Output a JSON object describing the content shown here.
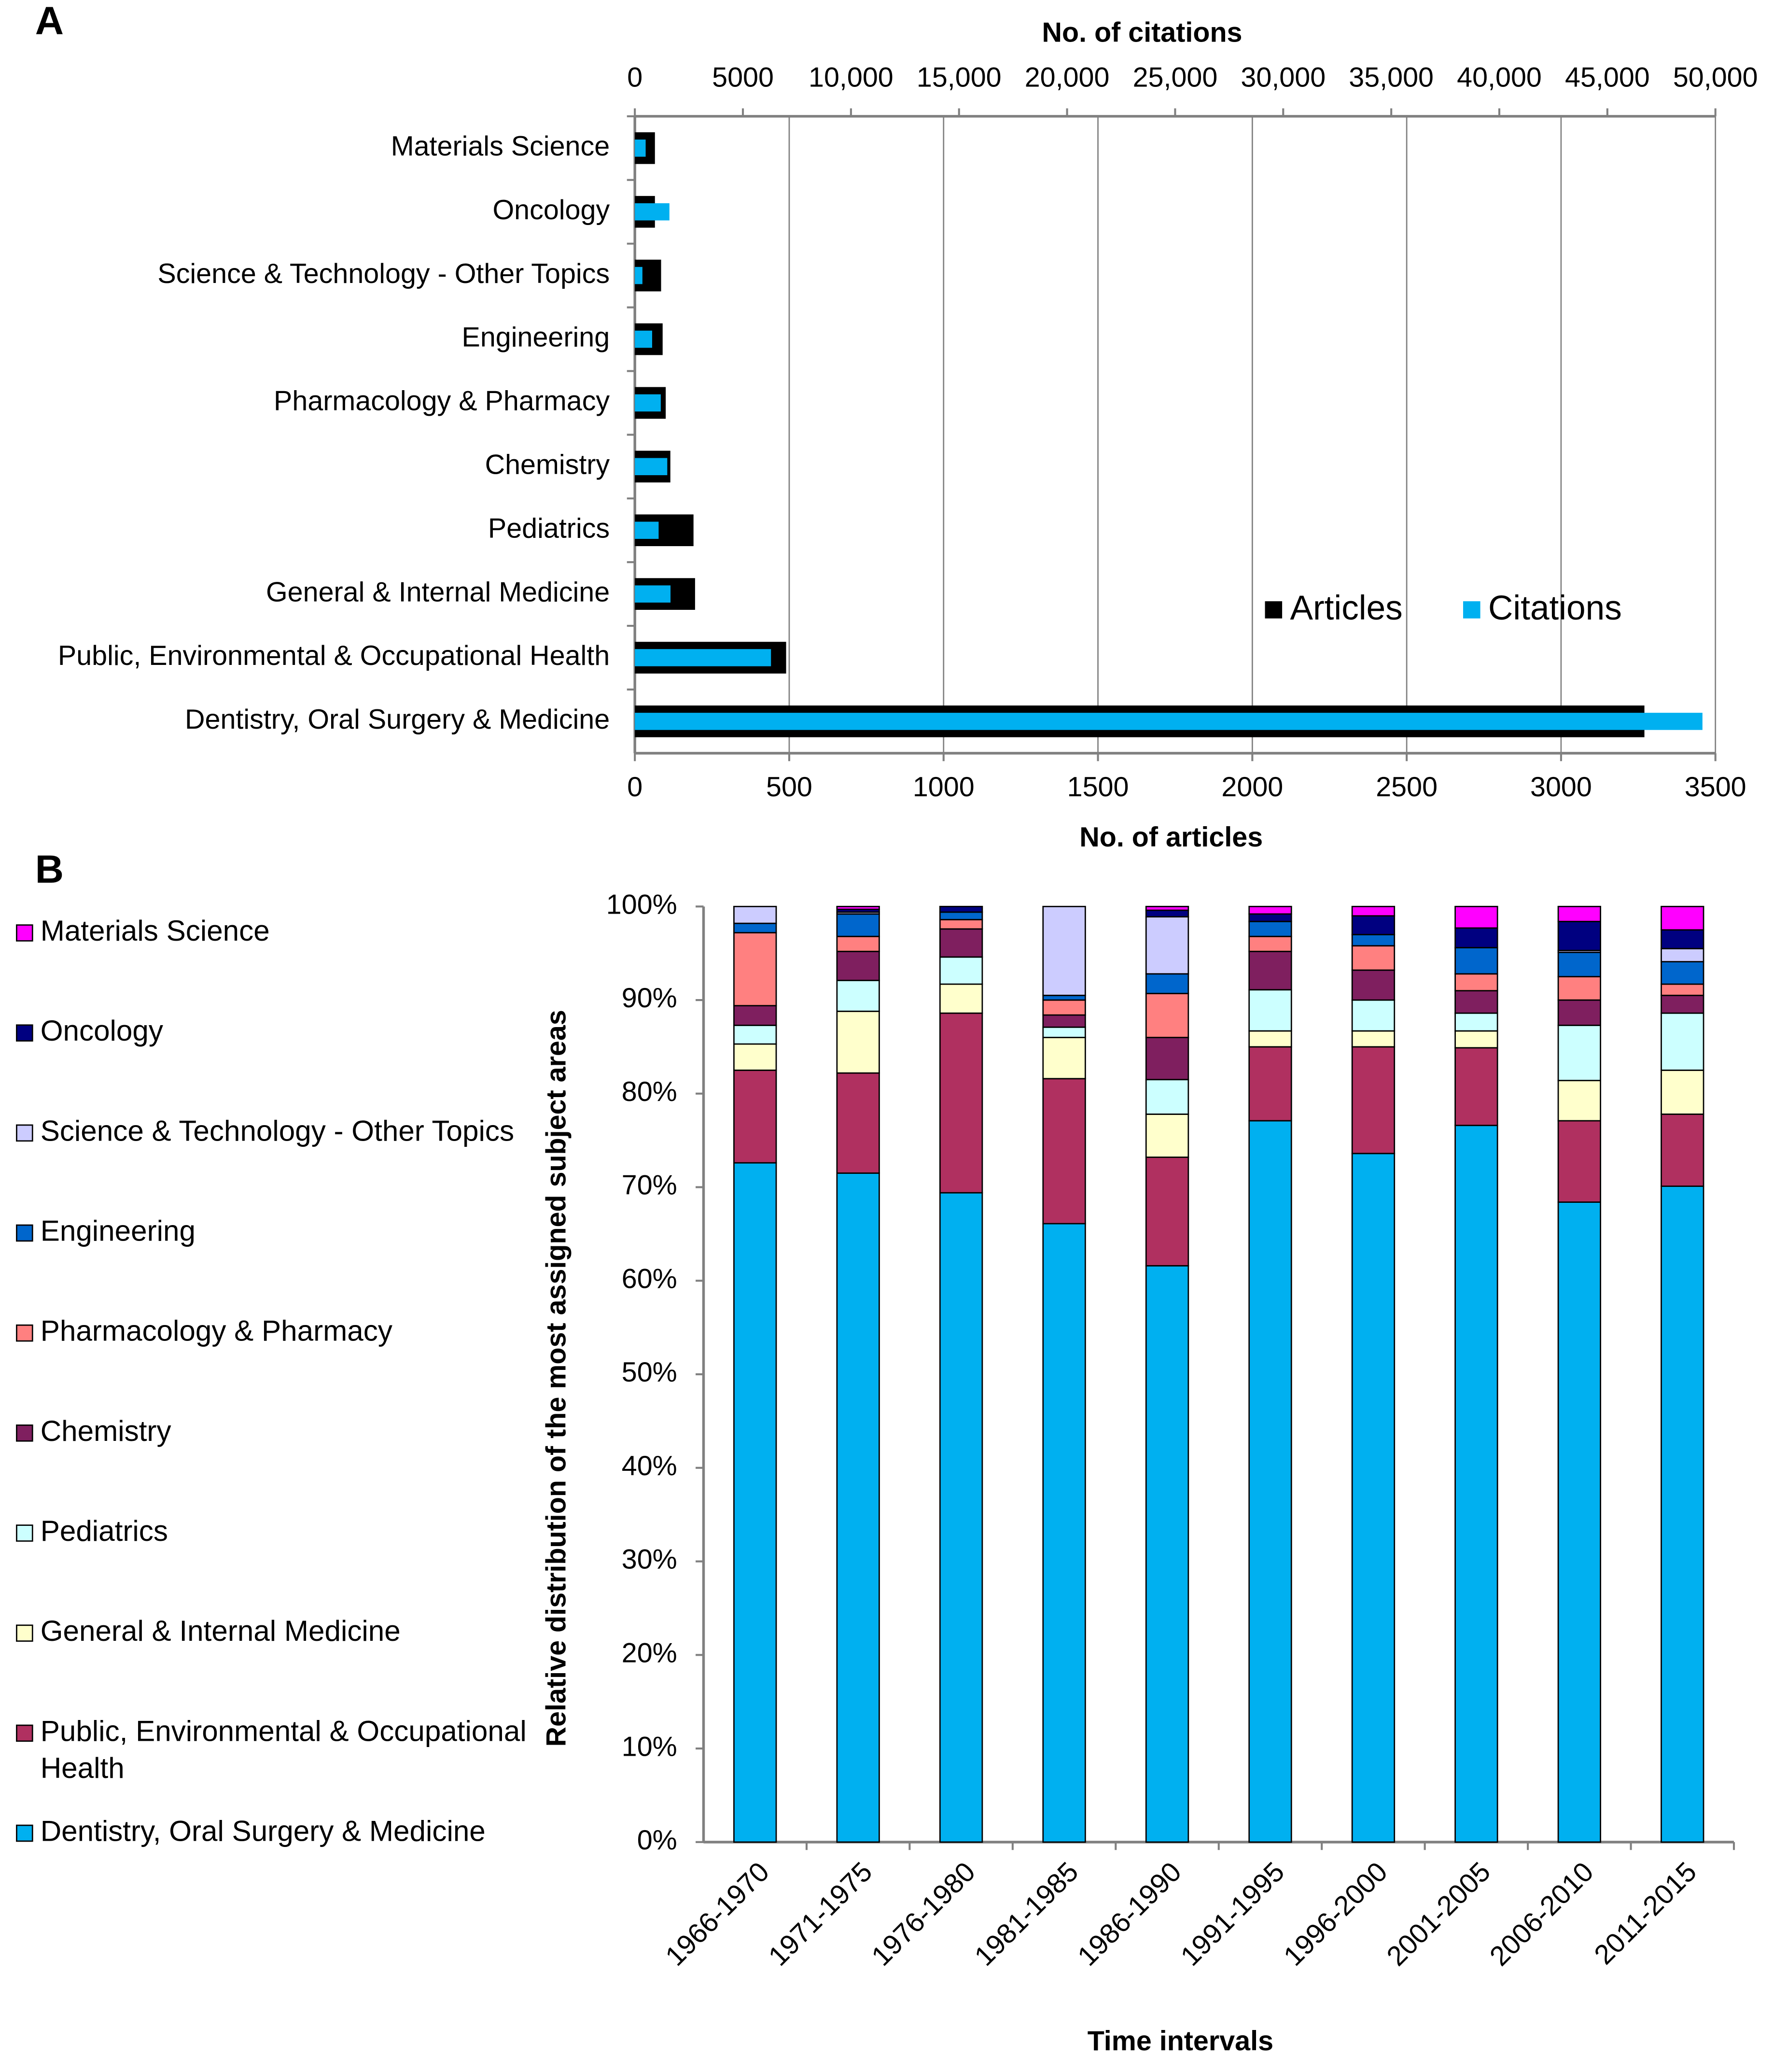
{
  "chart_data": [
    {
      "type": "bar",
      "orientation": "horizontal",
      "panel_label": "A",
      "categories": [
        "Materials Science",
        "Oncology",
        "Science & Technology - Other Topics",
        "Engineering",
        "Pharmacology & Pharmacy",
        "Chemistry",
        "Pediatrics",
        "General & Internal Medicine",
        "Public, Environmental & Occupational Health",
        "Dentistry, Oral Surgery & Medicine"
      ],
      "series": [
        {
          "name": "Articles",
          "color": "#000000",
          "values": [
            65,
            65,
            85,
            90,
            100,
            115,
            190,
            195,
            490,
            3270
          ]
        },
        {
          "name": "Citations",
          "color": "#00b0f0",
          "axis": "x2",
          "values": [
            500,
            1600,
            350,
            800,
            1200,
            1500,
            1100,
            1650,
            6300,
            49400
          ]
        }
      ],
      "xlabel": "No. of articles",
      "x2label": "No. of citations",
      "xlim": [
        0,
        3500
      ],
      "xticks": [
        0,
        500,
        1000,
        1500,
        2000,
        2500,
        3000,
        3500
      ],
      "x2lim": [
        0,
        50000
      ],
      "x2ticks": [
        0,
        5000,
        {
          "value": 10000,
          "label": "10,000"
        },
        {
          "value": 15000,
          "label": "15,000"
        },
        {
          "value": 20000,
          "label": "20,000"
        },
        {
          "value": 25000,
          "label": "25,000"
        },
        {
          "value": 30000,
          "label": "30,000"
        },
        {
          "value": 35000,
          "label": "35,000"
        },
        {
          "value": 40000,
          "label": "40,000"
        },
        {
          "value": 45000,
          "label": "45,000"
        },
        {
          "value": 50000,
          "label": "50,000"
        }
      ],
      "grid": true,
      "legend": "lower right"
    },
    {
      "type": "stacked_bar",
      "panel_label": "B",
      "categories": [
        "1966-1970",
        "1971-1975",
        "1976-1980",
        "1981-1985",
        "1986-1990",
        "1991-1995",
        "1996-2000",
        "2001-2005",
        "2006-2010",
        "2011-2015"
      ],
      "series": [
        {
          "name": "Dentistry, Oral Surgery & Medicine",
          "color": "#00b0f0",
          "values": [
            72.6,
            71.5,
            69.4,
            66.1,
            61.6,
            77.1,
            73.6,
            76.6,
            68.4,
            70.1
          ]
        },
        {
          "name": "Public, Environmental & Occupational Health",
          "color": "#b03060",
          "values": [
            9.9,
            10.7,
            19.2,
            15.5,
            11.6,
            7.9,
            11.4,
            8.3,
            8.7,
            7.7
          ]
        },
        {
          "name": "General & Internal Medicine",
          "color": "#ffffcc",
          "values": [
            2.8,
            6.6,
            3.1,
            4.4,
            4.6,
            1.7,
            1.7,
            1.8,
            4.3,
            4.7
          ]
        },
        {
          "name": "Pediatrics",
          "color": "#ccffff",
          "values": [
            2.0,
            3.3,
            2.9,
            1.1,
            3.7,
            4.4,
            3.3,
            1.9,
            5.9,
            6.1
          ]
        },
        {
          "name": "Chemistry",
          "color": "#7f1f5f",
          "values": [
            2.1,
            3.1,
            3.0,
            1.3,
            4.5,
            4.1,
            3.2,
            2.4,
            2.7,
            1.9
          ]
        },
        {
          "name": "Pharmacology & Pharmacy",
          "color": "#ff8080",
          "values": [
            7.8,
            1.6,
            1.0,
            1.6,
            4.7,
            1.6,
            2.6,
            1.8,
            2.5,
            1.2
          ]
        },
        {
          "name": "Engineering",
          "color": "#0066cc",
          "values": [
            1.0,
            2.4,
            0.8,
            0.5,
            2.1,
            1.6,
            1.2,
            2.8,
            2.6,
            2.4
          ]
        },
        {
          "name": "Science & Technology - Other Topics",
          "color": "#ccccff",
          "values": [
            1.8,
            0.2,
            0,
            9.5,
            6.1,
            0,
            0,
            0,
            0.2,
            1.4
          ]
        },
        {
          "name": "Oncology",
          "color": "#000080",
          "values": [
            0,
            0.3,
            0.6,
            0,
            0.7,
            0.8,
            2.0,
            2.1,
            3.1,
            2.0
          ]
        },
        {
          "name": "Materials Science",
          "color": "#ff00ff",
          "values": [
            0,
            0.3,
            0,
            0,
            0.4,
            0.8,
            1.0,
            2.3,
            1.6,
            2.5
          ]
        }
      ],
      "ylabel": "Relative distribution of the most assigned subject areas",
      "xlabel": "Time intervals",
      "ylim": [
        0,
        100
      ],
      "yticks": [
        {
          "value": 0,
          "label": "0%"
        },
        {
          "value": 10,
          "label": "10%"
        },
        {
          "value": 20,
          "label": "20%"
        },
        {
          "value": 30,
          "label": "30%"
        },
        {
          "value": 40,
          "label": "40%"
        },
        {
          "value": 50,
          "label": "50%"
        },
        {
          "value": 60,
          "label": "60%"
        },
        {
          "value": 70,
          "label": "70%"
        },
        {
          "value": 80,
          "label": "80%"
        },
        {
          "value": 90,
          "label": "90%"
        },
        {
          "value": 100,
          "label": "100%"
        }
      ],
      "legend": "left"
    }
  ]
}
